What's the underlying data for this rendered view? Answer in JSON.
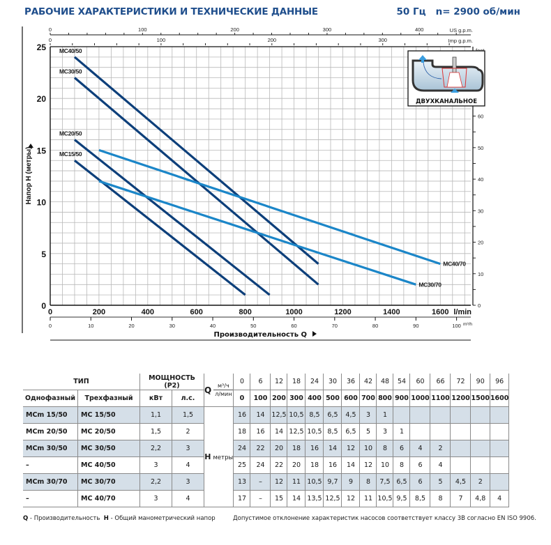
{
  "header": {
    "title": "РАБОЧИЕ ХАРАКТЕРИСТИКИ И ТЕХНИЧЕСКИЕ ДАННЫЕ",
    "frequency": "50 Гц",
    "speed": "n= 2900 об/мин"
  },
  "chart_data": {
    "type": "line",
    "title": "РАБОЧИЕ ХАРАКТЕРИСТИКИ И ТЕХНИЧЕСКИЕ ДАННЫЕ",
    "xlabel": "Производительность Q",
    "ylabel": "Напор H (метры)",
    "x_unit": "l/min",
    "xlim": [
      0,
      1725
    ],
    "ylim": [
      0,
      25
    ],
    "grid": true,
    "x_ticks": [
      0,
      200,
      400,
      600,
      800,
      1000,
      1200,
      1400,
      1600
    ],
    "y_ticks": [
      0,
      5,
      10,
      15,
      20,
      25
    ],
    "secondary_axes": {
      "m3h": {
        "label": "m³/h",
        "ticks": [
          0,
          10,
          20,
          30,
          40,
          50,
          60,
          70,
          80,
          90,
          100
        ]
      },
      "us_gpm": {
        "label": "US g.p.m.",
        "ticks": [
          0,
          100,
          200,
          300,
          400
        ]
      },
      "imp_gpm": {
        "label": "Imp g.p.m.",
        "ticks": [
          0,
          100,
          200,
          300
        ]
      },
      "feet": {
        "label": "feet",
        "ticks": [
          0,
          10,
          20,
          30,
          40,
          50,
          60,
          70
        ]
      }
    },
    "series": [
      {
        "name": "MC40/50",
        "color": "#0d3f7a",
        "label_pos": "start",
        "points": [
          [
            100,
            24
          ],
          [
            1100,
            4
          ]
        ]
      },
      {
        "name": "MC30/50",
        "color": "#0d3f7a",
        "label_pos": "start",
        "points": [
          [
            100,
            22
          ],
          [
            1100,
            2
          ]
        ]
      },
      {
        "name": "MC20/50",
        "color": "#0d3f7a",
        "label_pos": "start",
        "points": [
          [
            100,
            16
          ],
          [
            900,
            1
          ]
        ]
      },
      {
        "name": "MC15/50",
        "color": "#0d3f7a",
        "label_pos": "start",
        "points": [
          [
            100,
            14
          ],
          [
            800,
            1
          ]
        ]
      },
      {
        "name": "MC40/70",
        "color": "#1b86c8",
        "label_pos": "end",
        "points": [
          [
            200,
            15
          ],
          [
            1600,
            4
          ]
        ]
      },
      {
        "name": "MC30/70",
        "color": "#1b86c8",
        "label_pos": "end",
        "points": [
          [
            200,
            12
          ],
          [
            1500,
            2
          ]
        ]
      }
    ],
    "inset": {
      "label": "ДВУХКАНАЛЬНОЕ",
      "icon": "twin-channel-impeller-icon"
    }
  },
  "table": {
    "header": {
      "type": "ТИП",
      "power": "МОЩНОСТЬ (P2)",
      "single_phase": "Однофазный",
      "three_phase": "Трехфазный",
      "kw": "кВт",
      "hp": "л.с.",
      "q": "Q",
      "q_unit_m3h": "м³/ч",
      "q_unit_lmin": "л/мин",
      "h": "H",
      "h_unit": "метры"
    },
    "q_m3h": [
      "0",
      "6",
      "12",
      "18",
      "24",
      "30",
      "36",
      "42",
      "48",
      "54",
      "60",
      "66",
      "72",
      "90",
      "96"
    ],
    "q_lmin": [
      "0",
      "100",
      "200",
      "300",
      "400",
      "500",
      "600",
      "700",
      "800",
      "900",
      "1000",
      "1100",
      "1200",
      "1500",
      "1600"
    ],
    "rows": [
      {
        "single": "MCm 15/50",
        "three": "MC 15/50",
        "kw": "1,1",
        "hp": "1,5",
        "h": [
          "16",
          "14",
          "12,5",
          "10,5",
          "8,5",
          "6,5",
          "4,5",
          "3",
          "1",
          "",
          "",
          "",
          "",
          "",
          ""
        ]
      },
      {
        "single": "MCm 20/50",
        "three": "MC 20/50",
        "kw": "1,5",
        "hp": "2",
        "h": [
          "18",
          "16",
          "14",
          "12,5",
          "10,5",
          "8,5",
          "6,5",
          "5",
          "3",
          "1",
          "",
          "",
          "",
          "",
          ""
        ]
      },
      {
        "single": "MCm 30/50",
        "three": "MC 30/50",
        "kw": "2,2",
        "hp": "3",
        "h": [
          "24",
          "22",
          "20",
          "18",
          "16",
          "14",
          "12",
          "10",
          "8",
          "6",
          "4",
          "2",
          "",
          "",
          ""
        ]
      },
      {
        "single": "–",
        "three": "MC 40/50",
        "kw": "3",
        "hp": "4",
        "h": [
          "25",
          "24",
          "22",
          "20",
          "18",
          "16",
          "14",
          "12",
          "10",
          "8",
          "6",
          "4",
          "",
          "",
          ""
        ]
      },
      {
        "single": "MCm 30/70",
        "three": "MC 30/70",
        "kw": "2,2",
        "hp": "3",
        "h": [
          "13",
          "–",
          "12",
          "11",
          "10,5",
          "9,7",
          "9",
          "8",
          "7,5",
          "6,5",
          "6",
          "5",
          "4,5",
          "2",
          ""
        ]
      },
      {
        "single": "–",
        "three": "MC 40/70",
        "kw": "3",
        "hp": "4",
        "h": [
          "17",
          "–",
          "15",
          "14",
          "13,5",
          "12,5",
          "12",
          "11",
          "10,5",
          "9,5",
          "8,5",
          "8",
          "7",
          "4,8",
          "4"
        ]
      }
    ]
  },
  "footer": {
    "q_key": "Q",
    "q_desc": " - Производительность",
    "h_key": "H",
    "h_desc": " - Общий манометрический напор",
    "tolerance": "Допустимое отклонение характеристик насосов соответствует классу 3B согласно EN ISO 9906."
  }
}
